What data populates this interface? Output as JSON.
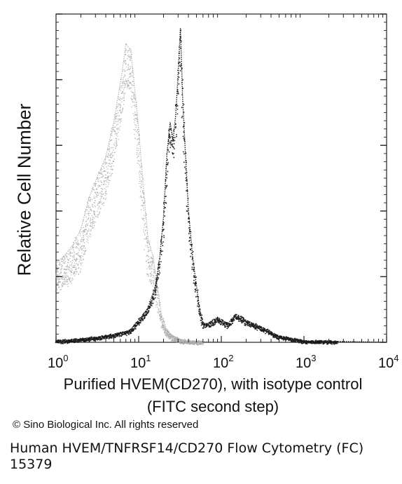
{
  "chart_data": {
    "type": "area",
    "title": "",
    "ylabel": "Relative Cell Number",
    "xlabel_line1": "Purified HVEM(CD270), with isotype control",
    "xlabel_line2": "(FITC second step)",
    "xscale": "log",
    "xlim": [
      1,
      10000
    ],
    "x_tick_labels": [
      {
        "base": "10",
        "exp": "0"
      },
      {
        "base": "10",
        "exp": "1"
      },
      {
        "base": "10",
        "exp": "2"
      },
      {
        "base": "10",
        "exp": "3"
      },
      {
        "base": "10",
        "exp": "4"
      }
    ],
    "ylim": [
      0,
      100
    ],
    "grid": false,
    "legend": "none",
    "series": [
      {
        "style": "light-gray-dotted",
        "color": "#a8a8a8",
        "x": [
          1.0,
          1.3,
          1.6,
          2.0,
          2.5,
          3.2,
          4.0,
          5.0,
          6.3,
          7.0,
          8.0,
          9.0,
          10.0,
          11.5,
          13.0,
          15.0,
          17.0,
          19.0,
          22.0,
          26.0,
          32.0,
          40.0,
          60.0,
          100.0
        ],
        "y": [
          25,
          28,
          31,
          36,
          46,
          53,
          59,
          70,
          86,
          95,
          93,
          80,
          68,
          48,
          33,
          27,
          17,
          8,
          4,
          2,
          1,
          0.5,
          0.3,
          0.2
        ]
      },
      {
        "style": "dark-dotted",
        "color": "#1a1a1a",
        "x": [
          1.0,
          2.0,
          4.0,
          6.0,
          8.0,
          10.0,
          13.0,
          16.0,
          18.0,
          20.0,
          22.0,
          24.0,
          26.0,
          28.0,
          30.0,
          32.0,
          34.0,
          36.0,
          40.0,
          45.0,
          50.0,
          55.0,
          60.0,
          70.0,
          90.0,
          120.0,
          150.0,
          200.0,
          300.0,
          500.0,
          1000.0,
          10000.0
        ],
        "y": [
          0.5,
          1,
          2,
          3,
          4,
          7,
          11,
          18,
          27,
          40,
          60,
          70,
          64,
          72,
          85,
          100,
          78,
          65,
          42,
          27,
          18,
          10,
          6,
          6,
          8,
          6,
          9,
          7,
          5,
          2,
          0.5,
          0
        ]
      }
    ]
  },
  "copyright": "© Sino Biological Inc. All rights reserved",
  "caption": {
    "line1": "Human HVEM/TNFRSF14/CD270 Flow Cytometry (FC)",
    "line2": "15379"
  }
}
